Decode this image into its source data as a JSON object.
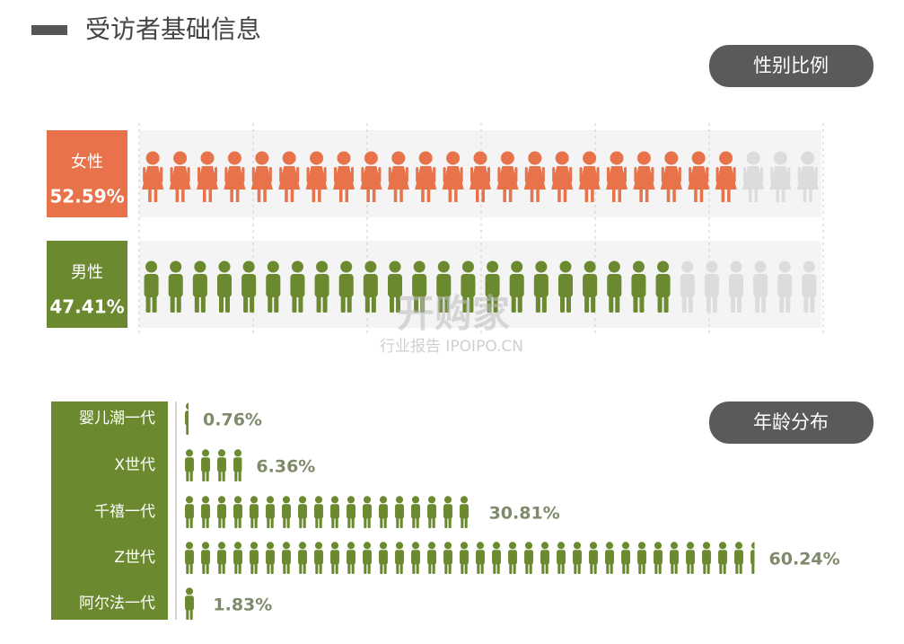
{
  "header": {
    "title": "受访者基础信息"
  },
  "watermark": {
    "logo": "开购家",
    "caption": "行业报告 IPOIPO.CN"
  },
  "chart_data": [
    {
      "type": "pictograph",
      "title": "性别比例",
      "icon": "gender",
      "categories": [
        "女性",
        "男性"
      ],
      "values": [
        52.59,
        47.41
      ],
      "value_labels": [
        "52.59%",
        "47.41%"
      ],
      "colors": [
        "#e8734a",
        "#6b8a2f"
      ],
      "empty_color": "#dcdcdc"
    },
    {
      "type": "pictograph",
      "title": "年龄分布",
      "icon": "person",
      "categories": [
        "婴儿潮一代",
        "X世代",
        "千禧一代",
        "Z世代",
        "阿尔法一代"
      ],
      "values": [
        0.76,
        6.36,
        30.81,
        60.24,
        1.83
      ],
      "value_labels": [
        "0.76%",
        "6.36%",
        "30.81%",
        "60.24%",
        "1.83%"
      ],
      "color": "#6b8a2f"
    }
  ]
}
